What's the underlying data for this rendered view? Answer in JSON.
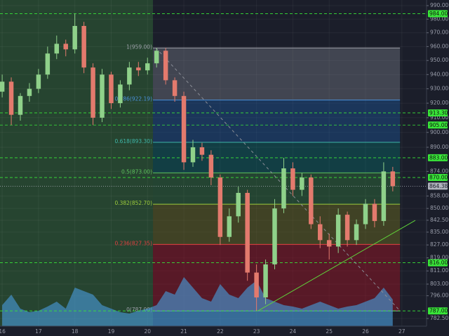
{
  "chart_data": {
    "type": "candlestick",
    "log_scale": true,
    "xlim": [
      15.94,
      27.68
    ],
    "ylim": [
      778,
      994.2
    ],
    "xticks": [
      16,
      17,
      18,
      19,
      20,
      21,
      22,
      23,
      24,
      25,
      26,
      27
    ],
    "yticks": [
      {
        "value": 990,
        "label": "990.00"
      },
      {
        "value": 980,
        "label": "980.00"
      },
      {
        "value": 970,
        "label": "970.00"
      },
      {
        "value": 960,
        "label": "960.00"
      },
      {
        "value": 950,
        "label": "950.00"
      },
      {
        "value": 940,
        "label": "940.00"
      },
      {
        "value": 930,
        "label": "930.00"
      },
      {
        "value": 920,
        "label": "920.00"
      },
      {
        "value": 910,
        "label": "910.00"
      },
      {
        "value": 900,
        "label": "900.00"
      },
      {
        "value": 890,
        "label": "890.00"
      },
      {
        "value": 874,
        "label": "874.00"
      },
      {
        "value": 858,
        "label": "858.00"
      },
      {
        "value": 850,
        "label": "850.00"
      },
      {
        "value": 842.5,
        "label": "842.50"
      },
      {
        "value": 835,
        "label": "835.00"
      },
      {
        "value": 827,
        "label": "827.00"
      },
      {
        "value": 819,
        "label": "819.00"
      },
      {
        "value": 811,
        "label": "811.00"
      },
      {
        "value": 803,
        "label": "803.00"
      },
      {
        "value": 796,
        "label": "796.00"
      },
      {
        "value": 782.5,
        "label": "782.50"
      }
    ],
    "highlight_region": {
      "x": [
        15.94,
        20.15
      ],
      "color": "rgba(60,140,60,0.35)"
    },
    "levels": {
      "color": "#39e639",
      "items": [
        {
          "value": 984,
          "label": "984.00"
        },
        {
          "value": 913.3,
          "label": "913.30"
        },
        {
          "value": 905,
          "label": "905.00"
        },
        {
          "value": 883,
          "label": "883.00"
        },
        {
          "value": 870,
          "label": "870.00"
        },
        {
          "value": 816,
          "label": "816.00"
        },
        {
          "value": 787,
          "label": "787.00"
        }
      ]
    },
    "current_price": {
      "value": 864.38,
      "label": "864.38",
      "color": "#b0b3bd"
    },
    "fib": {
      "x": [
        20.15,
        26.95
      ],
      "levels": [
        {
          "value": 959,
          "label": "1(959.00)",
          "color": "#9ea1aa",
          "fill": "rgba(130,133,145,0.38)"
        },
        {
          "value": 922.19,
          "label": "0.786(922.19)",
          "color": "#4a90d9",
          "fill": "rgba(30,100,180,0.35)"
        },
        {
          "value": 893.3,
          "label": "0.618(893.30)",
          "color": "#3fb6a8",
          "fill": "rgba(0,140,130,0.30)"
        },
        {
          "value": 873,
          "label": "0.5(873.00)",
          "color": "#5cc05c",
          "fill": "rgba(60,160,70,0.30)"
        },
        {
          "value": 852.7,
          "label": "0.382(852.70)",
          "color": "#9ccc3c",
          "fill": "rgba(120,120,30,0.40)"
        },
        {
          "value": 827.35,
          "label": "0.236(827.35)",
          "color": "#e04040",
          "fill": "rgba(150,20,35,0.50)"
        },
        {
          "value": 787,
          "label": "0(787.00)",
          "color": "#9ea1aa"
        }
      ]
    },
    "trendlines": [
      {
        "x": [
          23.04,
          27.37
        ],
        "y": [
          787,
          842.4
        ],
        "color": "#5fd33a",
        "dashed": false
      },
      {
        "x": [
          20.23,
          26.95
        ],
        "y": [
          959,
          787
        ],
        "color": "#8a8d96",
        "dashed": true
      }
    ],
    "candles": {
      "up_color": "#8fd18a",
      "down_color": "#e37a6d",
      "x": [
        16,
        16.25,
        16.5,
        16.75,
        17,
        17.25,
        17.5,
        17.75,
        18,
        18.25,
        18.5,
        18.75,
        19,
        19.25,
        19.5,
        19.75,
        20,
        20.25,
        20.5,
        20.75,
        21,
        21.25,
        21.5,
        21.75,
        22,
        22.25,
        22.5,
        22.75,
        23,
        23.25,
        23.5,
        23.75,
        24,
        24.25,
        24.5,
        24.75,
        25,
        25.25,
        25.5,
        25.75,
        26,
        26.25,
        26.5,
        26.75
      ],
      "open": [
        928,
        935,
        912,
        925,
        930,
        940,
        955,
        962,
        958,
        975,
        945,
        910,
        940,
        920,
        933,
        945,
        943,
        948,
        957,
        936,
        925,
        880,
        890,
        885,
        870,
        832,
        845,
        860,
        810,
        795,
        815,
        850,
        876,
        862,
        870,
        840,
        830,
        826,
        846,
        830,
        840,
        853,
        842,
        874
      ],
      "high": [
        940,
        938,
        927,
        934,
        944,
        960,
        968,
        965,
        984,
        978,
        948,
        944,
        942,
        936,
        949,
        949,
        952,
        959,
        959,
        938,
        928,
        895,
        893,
        888,
        872,
        850,
        864,
        862,
        815,
        818,
        856,
        883,
        880,
        873,
        872,
        845,
        834,
        850,
        848,
        843,
        856,
        856,
        880,
        877
      ],
      "low": [
        924,
        905,
        908,
        921,
        927,
        937,
        951,
        953,
        955,
        941,
        905,
        907,
        916,
        917,
        929,
        939,
        940,
        945,
        933,
        921,
        875,
        877,
        881,
        865,
        827,
        829,
        841,
        805,
        787,
        791,
        812,
        847,
        858,
        858,
        837,
        825,
        818,
        822,
        826,
        827,
        837,
        838,
        839,
        861
      ],
      "close": [
        935,
        912,
        925,
        930,
        940,
        955,
        962,
        958,
        975,
        945,
        910,
        940,
        920,
        933,
        945,
        943,
        948,
        957,
        936,
        925,
        880,
        890,
        885,
        870,
        832,
        845,
        860,
        810,
        795,
        815,
        850,
        876,
        862,
        870,
        840,
        830,
        826,
        846,
        830,
        840,
        853,
        842,
        874,
        864.38
      ]
    },
    "volume": {
      "color": "rgba(70,150,210,0.65)",
      "values": [
        30,
        45,
        25,
        20,
        22,
        28,
        35,
        25,
        55,
        50,
        45,
        30,
        25,
        20,
        18,
        22,
        25,
        30,
        50,
        45,
        70,
        55,
        40,
        35,
        60,
        45,
        40,
        55,
        65,
        40,
        35,
        30,
        28,
        25,
        30,
        35,
        30,
        25,
        28,
        30,
        35,
        40,
        55,
        38
      ]
    }
  }
}
